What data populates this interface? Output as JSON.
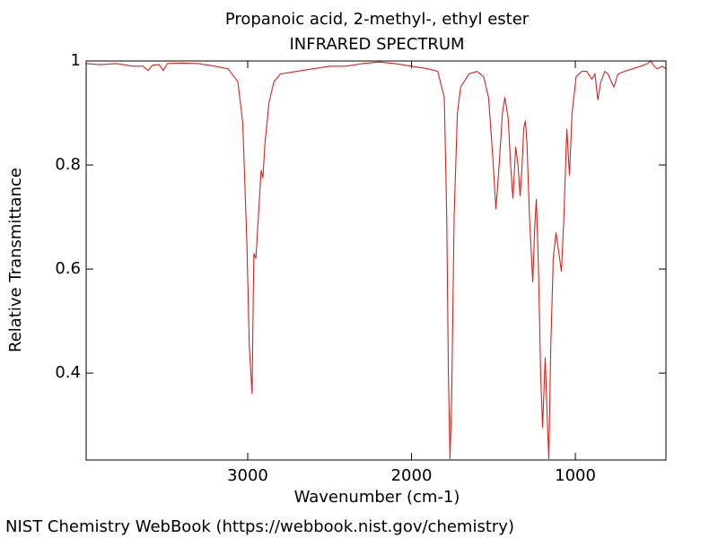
{
  "chart_data": {
    "type": "line",
    "title": "Propanoic acid, 2-methyl-, ethyl ester",
    "subtitle": "INFRARED SPECTRUM",
    "x_label": "Wavenumber (cm-1)",
    "y_label": "Relative Transmittance",
    "source": "NIST Chemistry WebBook (https://webbook.nist.gov/chemistry)",
    "xlim": [
      3986,
      447
    ],
    "ylim": [
      0.233,
      1
    ],
    "xticks": [
      3000,
      2000,
      1000
    ],
    "yticks": [
      0.4,
      0.6,
      0.8,
      1
    ],
    "series": [
      {
        "name": "Propanoic acid, 2-methyl-, ethyl ester",
        "color": "#e0201c",
        "x": [
          3986,
          3900,
          3800,
          3700,
          3640,
          3608,
          3580,
          3540,
          3515,
          3490,
          3400,
          3300,
          3200,
          3120,
          3060,
          3030,
          3005,
          2990,
          2973,
          2966,
          2962,
          2950,
          2935,
          2918,
          2907,
          2895,
          2870,
          2840,
          2800,
          2700,
          2600,
          2500,
          2400,
          2300,
          2200,
          2100,
          2000,
          1900,
          1840,
          1800,
          1785,
          1775,
          1765,
          1755,
          1740,
          1720,
          1700,
          1650,
          1600,
          1560,
          1530,
          1505,
          1485,
          1465,
          1445,
          1430,
          1410,
          1395,
          1381,
          1370,
          1364,
          1350,
          1337,
          1325,
          1315,
          1305,
          1295,
          1280,
          1260,
          1248,
          1238,
          1225,
          1212,
          1200,
          1184,
          1170,
          1162,
          1150,
          1135,
          1118,
          1100,
          1085,
          1070,
          1052,
          1036,
          1020,
          995,
          960,
          930,
          900,
          880,
          863,
          845,
          820,
          800,
          780,
          764,
          740,
          700,
          650,
          600,
          560,
          540,
          520,
          500,
          470,
          447
        ],
        "values": [
          0.995,
          0.993,
          0.995,
          0.99,
          0.99,
          0.982,
          0.992,
          0.993,
          0.982,
          0.995,
          0.996,
          0.995,
          0.99,
          0.985,
          0.96,
          0.88,
          0.65,
          0.45,
          0.36,
          0.55,
          0.63,
          0.62,
          0.7,
          0.79,
          0.775,
          0.84,
          0.92,
          0.96,
          0.975,
          0.98,
          0.985,
          0.99,
          0.99,
          0.995,
          0.998,
          0.995,
          0.99,
          0.985,
          0.98,
          0.93,
          0.7,
          0.4,
          0.235,
          0.35,
          0.7,
          0.9,
          0.95,
          0.975,
          0.98,
          0.97,
          0.93,
          0.82,
          0.715,
          0.8,
          0.9,
          0.93,
          0.89,
          0.8,
          0.735,
          0.8,
          0.835,
          0.8,
          0.74,
          0.8,
          0.87,
          0.885,
          0.84,
          0.7,
          0.575,
          0.68,
          0.735,
          0.6,
          0.4,
          0.295,
          0.43,
          0.3,
          0.235,
          0.45,
          0.62,
          0.67,
          0.63,
          0.595,
          0.7,
          0.87,
          0.78,
          0.9,
          0.97,
          0.98,
          0.98,
          0.965,
          0.975,
          0.925,
          0.96,
          0.98,
          0.975,
          0.96,
          0.95,
          0.975,
          0.98,
          0.985,
          0.99,
          0.995,
          1.0,
          0.99,
          0.985,
          0.99,
          0.985
        ]
      }
    ]
  }
}
